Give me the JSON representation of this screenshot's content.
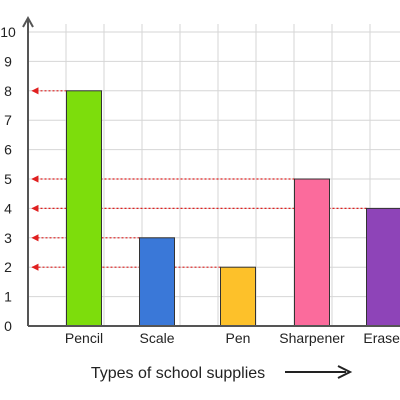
{
  "chart_data": {
    "type": "bar",
    "categories": [
      "Pencil",
      "Scale",
      "Pen",
      "Sharpener",
      "Eraser"
    ],
    "values": [
      8,
      3,
      2,
      5,
      4
    ],
    "colors": [
      "#7ddd0c",
      "#3a78d8",
      "#fdc12a",
      "#fb6b9c",
      "#8e44b8"
    ],
    "title": "",
    "xlabel": "Types of school supplies",
    "ylabel": "",
    "ylim": [
      0,
      10
    ],
    "yticks": [
      0,
      1,
      2,
      3,
      4,
      5,
      6,
      7,
      8,
      9,
      10
    ],
    "grid": true,
    "guide_line_color": "#e02020",
    "axis_color": "#555555"
  }
}
